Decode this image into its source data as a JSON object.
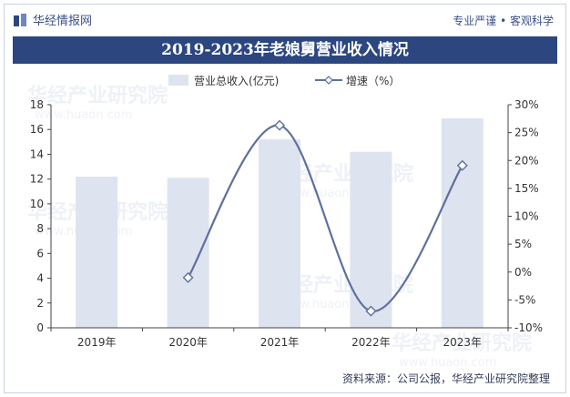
{
  "header": {
    "brand": "华经情报网",
    "slogan": "专业严谨 • 客观科学"
  },
  "title": "2019-2023年老娘舅营业收入情况",
  "watermark": {
    "line1": "华经产业研究院",
    "line2": "www.huaon.com"
  },
  "source": "资料来源：公司公报，华经产业研究院整理",
  "chart_data": {
    "type": "bar",
    "categories": [
      "2019年",
      "2020年",
      "2021年",
      "2022年",
      "2023年"
    ],
    "series": [
      {
        "name": "营业总收入(亿元)",
        "type": "bar",
        "axis": "left",
        "values": [
          12.2,
          12.1,
          15.2,
          14.2,
          16.9
        ]
      },
      {
        "name": "增速（%）",
        "type": "line",
        "axis": "right",
        "values": [
          null,
          -1.0,
          26.3,
          -7.0,
          19.1
        ]
      }
    ],
    "y_left": {
      "min": 0,
      "max": 18,
      "step": 2,
      "ticks": [
        "0",
        "2",
        "4",
        "6",
        "8",
        "10",
        "12",
        "14",
        "16",
        "18"
      ]
    },
    "y_right": {
      "min": -10,
      "max": 30,
      "step": 5,
      "ticks": [
        "-10%",
        "-5%",
        "0%",
        "5%",
        "10%",
        "15%",
        "20%",
        "25%",
        "30%"
      ]
    },
    "legend_position": "top",
    "grid": false,
    "colors": {
      "bar": "#dde3ef",
      "line": "#5f6f9e",
      "axis": "#444444",
      "banner": "#2c4680"
    }
  }
}
